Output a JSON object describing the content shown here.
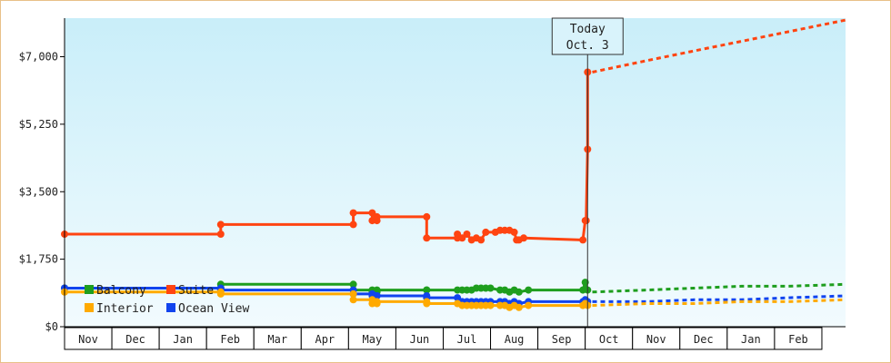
{
  "chart_data": {
    "type": "line",
    "title": "",
    "xlabel": "",
    "ylabel": "",
    "ylim": [
      0,
      8000
    ],
    "y_ticks": [
      {
        "value": 0,
        "label": "$0"
      },
      {
        "value": 1750,
        "label": "$1,750"
      },
      {
        "value": 3500,
        "label": "$3,500"
      },
      {
        "value": 5250,
        "label": "$5,250"
      },
      {
        "value": 7000,
        "label": "$7,000"
      }
    ],
    "x_months": [
      "Nov",
      "Dec",
      "Jan",
      "Feb",
      "Mar",
      "Apr",
      "May",
      "Jun",
      "Jul",
      "Aug",
      "Sep",
      "Oct",
      "Nov",
      "Dec",
      "Jan",
      "Feb"
    ],
    "x_domain": [
      0,
      16.5
    ],
    "grid": false,
    "legend_position": "bottom-left",
    "today": {
      "line1": "Today",
      "line2": "Oct. 3",
      "x": 11.05
    },
    "colors": {
      "Balcony": "#1e9e1e",
      "Suite": "#ff4411",
      "Interior": "#ffaa00",
      "Ocean View": "#1144ee"
    },
    "series": [
      {
        "name": "Suite",
        "points": [
          [
            0,
            2400
          ],
          [
            3.3,
            2400
          ],
          [
            3.3,
            2650
          ],
          [
            6.1,
            2650
          ],
          [
            6.1,
            2950
          ],
          [
            6.5,
            2950
          ],
          [
            6.5,
            2750
          ],
          [
            6.6,
            2750
          ],
          [
            6.6,
            2850
          ],
          [
            7.65,
            2850
          ],
          [
            7.65,
            2300
          ],
          [
            8.3,
            2300
          ],
          [
            8.3,
            2400
          ],
          [
            8.4,
            2300
          ],
          [
            8.5,
            2400
          ],
          [
            8.6,
            2250
          ],
          [
            8.7,
            2300
          ],
          [
            8.8,
            2250
          ],
          [
            8.9,
            2450
          ],
          [
            9.1,
            2450
          ],
          [
            9.2,
            2500
          ],
          [
            9.3,
            2500
          ],
          [
            9.4,
            2500
          ],
          [
            9.5,
            2450
          ],
          [
            9.55,
            2250
          ],
          [
            9.6,
            2250
          ],
          [
            9.7,
            2300
          ],
          [
            10.95,
            2250
          ],
          [
            11,
            2750
          ],
          [
            11.02,
            2750
          ],
          [
            11.05,
            4600
          ],
          [
            11.05,
            6600
          ]
        ],
        "forecast": [
          [
            11.15,
            6600
          ],
          [
            12.3,
            6900
          ],
          [
            13.3,
            7150
          ],
          [
            14.3,
            7400
          ],
          [
            15.3,
            7650
          ],
          [
            16.5,
            7950
          ]
        ]
      },
      {
        "name": "Balcony",
        "points": [
          [
            0,
            1000
          ],
          [
            3.3,
            1000
          ],
          [
            3.3,
            1100
          ],
          [
            6.1,
            1100
          ],
          [
            6.1,
            950
          ],
          [
            6.5,
            950
          ],
          [
            6.5,
            900
          ],
          [
            6.6,
            900
          ],
          [
            6.6,
            950
          ],
          [
            7.65,
            950
          ],
          [
            7.65,
            950
          ],
          [
            8.3,
            950
          ],
          [
            8.4,
            950
          ],
          [
            8.5,
            950
          ],
          [
            8.6,
            950
          ],
          [
            8.7,
            1000
          ],
          [
            8.8,
            1000
          ],
          [
            8.9,
            1000
          ],
          [
            9,
            1000
          ],
          [
            9.2,
            950
          ],
          [
            9.3,
            950
          ],
          [
            9.4,
            900
          ],
          [
            9.5,
            950
          ],
          [
            9.6,
            900
          ],
          [
            9.8,
            950
          ],
          [
            10.95,
            950
          ],
          [
            11,
            1150
          ],
          [
            11.05,
            950
          ]
        ],
        "forecast": [
          [
            11.15,
            900
          ],
          [
            12.3,
            950
          ],
          [
            13.3,
            1000
          ],
          [
            14.3,
            1050
          ],
          [
            15.3,
            1050
          ],
          [
            16.5,
            1100
          ]
        ]
      },
      {
        "name": "Ocean View",
        "points": [
          [
            0,
            1000
          ],
          [
            3.3,
            1000
          ],
          [
            3.3,
            950
          ],
          [
            6.1,
            950
          ],
          [
            6.1,
            850
          ],
          [
            6.5,
            850
          ],
          [
            6.5,
            800
          ],
          [
            6.6,
            800
          ],
          [
            6.6,
            800
          ],
          [
            7.65,
            800
          ],
          [
            7.65,
            750
          ],
          [
            8.3,
            750
          ],
          [
            8.4,
            650
          ],
          [
            8.5,
            650
          ],
          [
            8.6,
            650
          ],
          [
            8.7,
            650
          ],
          [
            8.8,
            650
          ],
          [
            8.9,
            650
          ],
          [
            9,
            650
          ],
          [
            9.2,
            650
          ],
          [
            9.3,
            650
          ],
          [
            9.4,
            600
          ],
          [
            9.5,
            650
          ],
          [
            9.6,
            600
          ],
          [
            9.8,
            650
          ],
          [
            10.95,
            650
          ],
          [
            11,
            700
          ],
          [
            11.05,
            650
          ]
        ],
        "forecast": [
          [
            11.15,
            650
          ],
          [
            12.3,
            650
          ],
          [
            13.3,
            700
          ],
          [
            14.3,
            700
          ],
          [
            15.3,
            750
          ],
          [
            16.5,
            800
          ]
        ]
      },
      {
        "name": "Interior",
        "points": [
          [
            0,
            900
          ],
          [
            3.3,
            900
          ],
          [
            3.3,
            850
          ],
          [
            6.1,
            850
          ],
          [
            6.1,
            700
          ],
          [
            6.5,
            700
          ],
          [
            6.5,
            600
          ],
          [
            6.6,
            600
          ],
          [
            6.6,
            650
          ],
          [
            7.65,
            650
          ],
          [
            7.65,
            600
          ],
          [
            8.3,
            600
          ],
          [
            8.4,
            550
          ],
          [
            8.5,
            550
          ],
          [
            8.6,
            550
          ],
          [
            8.7,
            550
          ],
          [
            8.8,
            550
          ],
          [
            8.9,
            550
          ],
          [
            9,
            550
          ],
          [
            9.2,
            550
          ],
          [
            9.3,
            550
          ],
          [
            9.4,
            500
          ],
          [
            9.5,
            550
          ],
          [
            9.6,
            500
          ],
          [
            9.8,
            550
          ],
          [
            10.95,
            550
          ],
          [
            11,
            600
          ],
          [
            11.05,
            550
          ]
        ],
        "forecast": [
          [
            11.15,
            550
          ],
          [
            12.3,
            600
          ],
          [
            13.3,
            600
          ],
          [
            14.3,
            650
          ],
          [
            15.3,
            650
          ],
          [
            16.5,
            700
          ]
        ]
      }
    ]
  }
}
